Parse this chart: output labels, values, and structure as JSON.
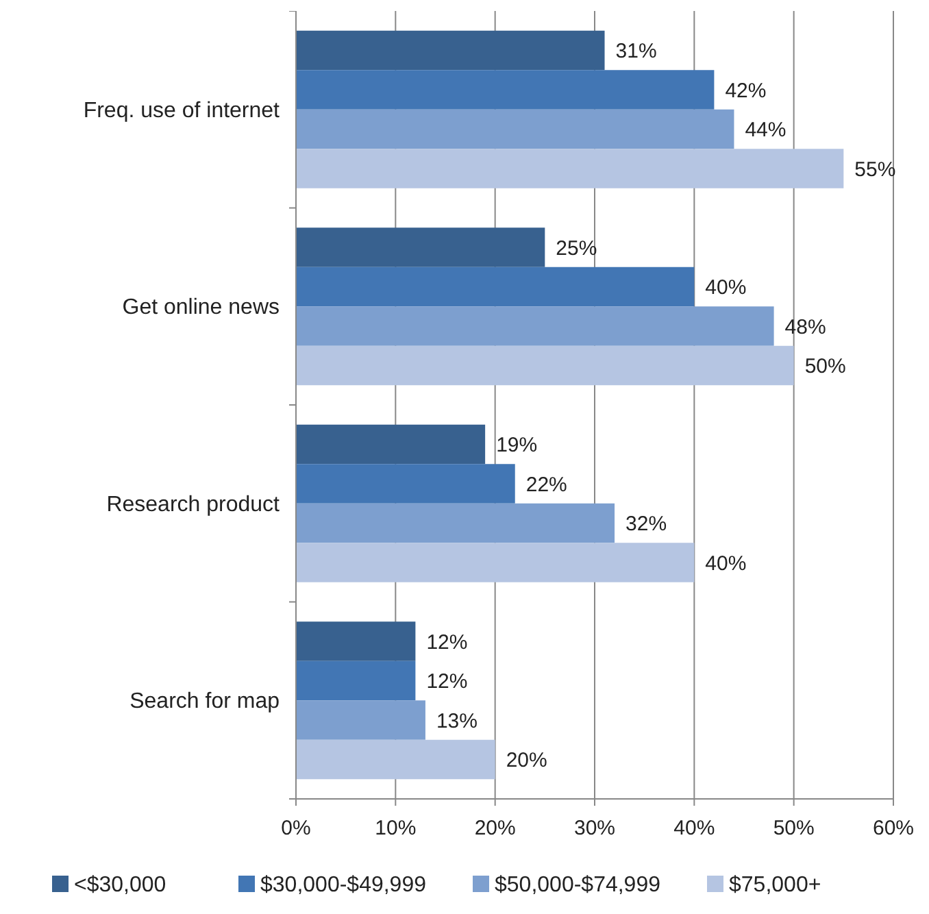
{
  "chart_data": {
    "type": "bar",
    "orientation": "horizontal",
    "categories": [
      "Freq. use of internet",
      "Get online news",
      "Research product",
      "Search for map"
    ],
    "series": [
      {
        "name": "<$30,000",
        "color": "#38618f",
        "values": [
          31,
          25,
          19,
          12
        ],
        "value_labels": [
          "31%",
          "25%",
          "19%",
          "12%"
        ]
      },
      {
        "name": "$30,000-$49,999",
        "color": "#4276b4",
        "values": [
          42,
          40,
          22,
          12
        ],
        "value_labels": [
          "42%",
          "40%",
          "22%",
          "12%"
        ]
      },
      {
        "name": "$50,000-$74,999",
        "color": "#7d9fcf",
        "values": [
          44,
          48,
          32,
          13
        ],
        "value_labels": [
          "44%",
          "48%",
          "32%",
          "13%"
        ]
      },
      {
        "name": "$75,000+",
        "color": "#b5c5e2",
        "values": [
          55,
          50,
          40,
          20
        ],
        "value_labels": [
          "55%",
          "50%",
          "40%",
          "20%"
        ]
      }
    ],
    "xlim": [
      0,
      60
    ],
    "xticks": [
      {
        "value": 0,
        "label": "0%"
      },
      {
        "value": 10,
        "label": "10%"
      },
      {
        "value": 20,
        "label": "20%"
      },
      {
        "value": 30,
        "label": "30%"
      },
      {
        "value": 40,
        "label": "40%"
      },
      {
        "value": 50,
        "label": "50%"
      },
      {
        "value": 60,
        "label": "60%"
      }
    ],
    "grid": "x",
    "legend": "bottom"
  }
}
